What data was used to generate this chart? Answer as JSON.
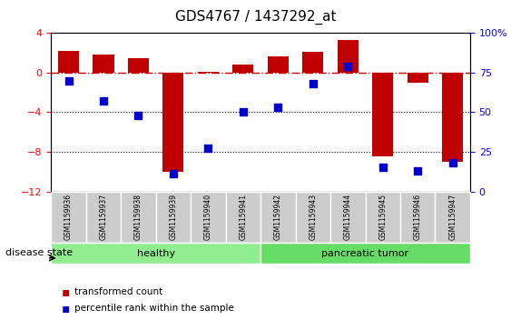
{
  "title": "GDS4767 / 1437292_at",
  "samples": [
    "GSM1159936",
    "GSM1159937",
    "GSM1159938",
    "GSM1159939",
    "GSM1159940",
    "GSM1159941",
    "GSM1159942",
    "GSM1159943",
    "GSM1159944",
    "GSM1159945",
    "GSM1159946",
    "GSM1159947"
  ],
  "transformed_count": [
    2.2,
    1.8,
    1.5,
    -10.0,
    0.1,
    0.8,
    1.6,
    2.1,
    3.3,
    -8.5,
    -1.0,
    -9.0
  ],
  "percentile_rank": [
    70,
    57,
    48,
    11,
    27,
    50,
    53,
    68,
    79,
    15,
    13,
    18
  ],
  "ylim_left": [
    -12,
    4
  ],
  "ylim_right": [
    0,
    100
  ],
  "yticks_left": [
    -12,
    -8,
    -4,
    0,
    4
  ],
  "yticks_right": [
    0,
    25,
    50,
    75,
    100
  ],
  "bar_color": "#C00000",
  "dot_color": "#0000CC",
  "hline_y": 0,
  "hline_color": "#CC0000",
  "dotted_lines": [
    -4,
    -8
  ],
  "healthy_count": 6,
  "tumor_count": 6,
  "healthy_label": "healthy",
  "tumor_label": "pancreatic tumor",
  "healthy_color_light": "#CCFFCC",
  "healthy_color_dark": "#66DD66",
  "tumor_color_light": "#99EE99",
  "tumor_color": "#66DD66",
  "group_label": "disease state",
  "legend_bar_label": "transformed count",
  "legend_dot_label": "percentile rank within the sample",
  "bg_color": "#FFFFFF",
  "tick_bg": "#CCCCCC"
}
